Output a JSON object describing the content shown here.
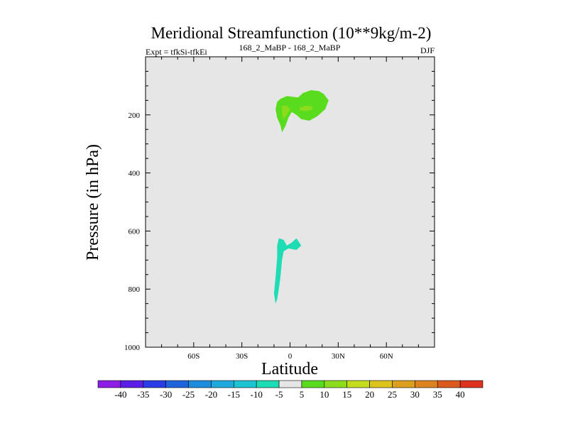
{
  "chart_data": {
    "type": "contour",
    "title": "Meridional Streamfunction (10**9kg/m-2)",
    "subtitle_left": "Expt = tfkSi-tfkEi",
    "subtitle_center": "168_2_MaBP - 168_2_MaBP",
    "subtitle_right": "DJF",
    "xlabel": "Latitude",
    "ylabel": "Pressure (in hPa)",
    "xlim": [
      -90,
      90
    ],
    "ylim": [
      1000,
      0
    ],
    "y_reversed": true,
    "x_ticks": [
      {
        "value": -60,
        "label": "60S"
      },
      {
        "value": -30,
        "label": "30S"
      },
      {
        "value": 0,
        "label": "0"
      },
      {
        "value": 30,
        "label": "30N"
      },
      {
        "value": 60,
        "label": "60N"
      }
    ],
    "y_ticks": [
      {
        "value": 200,
        "label": "200"
      },
      {
        "value": 400,
        "label": "400"
      },
      {
        "value": 600,
        "label": "600"
      },
      {
        "value": 800,
        "label": "800"
      },
      {
        "value": 1000,
        "label": "1000"
      }
    ],
    "background_color": "#e6e6e6",
    "colorbar": {
      "labels": [
        "-40",
        "-35",
        "-30",
        "-25",
        "-20",
        "-15",
        "-10",
        "-5",
        "5",
        "10",
        "15",
        "20",
        "25",
        "30",
        "35",
        "40"
      ],
      "colors": [
        "#8c1ee6",
        "#5a1ee6",
        "#2a3ce6",
        "#1e64dc",
        "#1e8cdc",
        "#1eaadc",
        "#1ec3d2",
        "#1edcb4",
        "#e6e6e6",
        "#5adc1e",
        "#8cdc1e",
        "#c3dc1e",
        "#dcc31e",
        "#dca01e",
        "#dc821e",
        "#dc5a1e",
        "#dc321e"
      ]
    },
    "regions": [
      {
        "name": "upper-positive-cell",
        "level": "5 to 10",
        "color": "#5adc1e",
        "points": [
          [
            -4,
            140
          ],
          [
            -2,
            135
          ],
          [
            5,
            140
          ],
          [
            8,
            125
          ],
          [
            13,
            115
          ],
          [
            18,
            118
          ],
          [
            21,
            128
          ],
          [
            24,
            150
          ],
          [
            22,
            180
          ],
          [
            17,
            205
          ],
          [
            12,
            220
          ],
          [
            7,
            215
          ],
          [
            4,
            200
          ],
          [
            1,
            190
          ],
          [
            -1,
            210
          ],
          [
            -3,
            240
          ],
          [
            -5,
            260
          ],
          [
            -6,
            235
          ],
          [
            -8,
            210
          ],
          [
            -9,
            180
          ],
          [
            -8,
            155
          ],
          [
            -6,
            145
          ]
        ]
      },
      {
        "name": "upper-positive-core-left",
        "level": "10 to 15",
        "color": "#8cdc1e",
        "points": [
          [
            -5,
            170
          ],
          [
            -2,
            168
          ],
          [
            0,
            180
          ],
          [
            -2,
            200
          ],
          [
            -4,
            215
          ],
          [
            -5,
            195
          ]
        ]
      },
      {
        "name": "upper-positive-core-right",
        "level": "10 to 15",
        "color": "#8cdc1e",
        "points": [
          [
            6,
            175
          ],
          [
            10,
            168
          ],
          [
            14,
            172
          ],
          [
            14,
            182
          ],
          [
            10,
            187
          ],
          [
            6,
            184
          ]
        ]
      },
      {
        "name": "lower-negative-cell",
        "level": "-10 to -5",
        "color": "#1edcb4",
        "points": [
          [
            -7,
            625
          ],
          [
            -4,
            630
          ],
          [
            -2,
            650
          ],
          [
            1,
            640
          ],
          [
            4,
            625
          ],
          [
            7,
            650
          ],
          [
            4,
            665
          ],
          [
            -1,
            660
          ],
          [
            -4,
            670
          ],
          [
            -5,
            700
          ],
          [
            -6,
            760
          ],
          [
            -7,
            800
          ],
          [
            -8,
            835
          ],
          [
            -9,
            850
          ],
          [
            -10,
            815
          ],
          [
            -9,
            760
          ],
          [
            -8,
            690
          ],
          [
            -8,
            650
          ]
        ]
      }
    ]
  }
}
